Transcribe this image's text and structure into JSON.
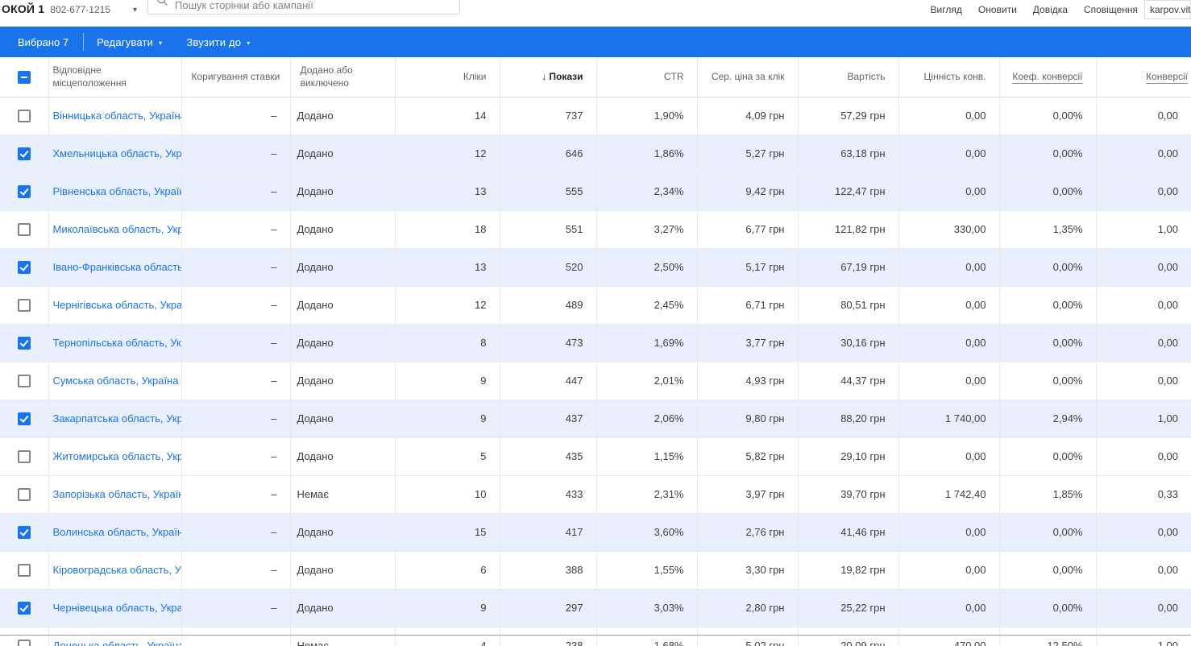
{
  "topbar": {
    "account_name": "ОКОЙ 1",
    "account_id": "802-677-1215",
    "search_placeholder": "Пошук сторінки або кампанії",
    "menu_items": [
      "Вигляд",
      "Оновити",
      "Довідка",
      "Сповіщення"
    ],
    "user_email": "karpov.vital",
    "accent_color": "#1a73e8",
    "selected_row_color": "#e8f0fe"
  },
  "selection_bar": {
    "selected_count_label": "Вибрано 7",
    "actions": [
      {
        "label": "Редагувати"
      },
      {
        "label": "Звузити до"
      }
    ]
  },
  "icons": {
    "sort_desc": "↓",
    "caret_down": "▾"
  },
  "table": {
    "columns": [
      {
        "id": "location",
        "label": "Відповідне місцеположення",
        "align": "left"
      },
      {
        "id": "bid_adjustment",
        "label": "Коригування ставки",
        "align": "left"
      },
      {
        "id": "added",
        "label": "Додано або виключено",
        "align": "left"
      },
      {
        "id": "clicks",
        "label": "Кліки",
        "align": "right"
      },
      {
        "id": "impressions",
        "label": "Покази",
        "align": "right",
        "sorted": "desc"
      },
      {
        "id": "ctr",
        "label": "CTR",
        "align": "right"
      },
      {
        "id": "avg_cpc",
        "label": "Сер. ціна за клік",
        "align": "right"
      },
      {
        "id": "cost",
        "label": "Вартість",
        "align": "right"
      },
      {
        "id": "conv_value",
        "label": "Цінність конв.",
        "align": "right"
      },
      {
        "id": "conv_rate",
        "label": "Коеф. конверсії",
        "align": "right",
        "underlined": true
      },
      {
        "id": "conversions",
        "label": "Конверсії",
        "align": "right",
        "underlined": true
      }
    ],
    "rows": [
      {
        "checked": false,
        "location": "Вінницька область, Україна",
        "bid_adjustment": "–",
        "added": "Додано",
        "clicks": "14",
        "impressions": "737",
        "ctr": "1,90%",
        "avg_cpc": "4,09 грн",
        "cost": "57,29 грн",
        "conv_value": "0,00",
        "conv_rate": "0,00%",
        "conversions": "0,00"
      },
      {
        "checked": true,
        "location": "Хмельницька область, Украї...",
        "bid_adjustment": "–",
        "added": "Додано",
        "clicks": "12",
        "impressions": "646",
        "ctr": "1,86%",
        "avg_cpc": "5,27 грн",
        "cost": "63,18 грн",
        "conv_value": "0,00",
        "conv_rate": "0,00%",
        "conversions": "0,00"
      },
      {
        "checked": true,
        "location": "Рівненська область, Україна",
        "bid_adjustment": "–",
        "added": "Додано",
        "clicks": "13",
        "impressions": "555",
        "ctr": "2,34%",
        "avg_cpc": "9,42 грн",
        "cost": "122,47 грн",
        "conv_value": "0,00",
        "conv_rate": "0,00%",
        "conversions": "0,00"
      },
      {
        "checked": false,
        "location": "Миколаївська область, Украї...",
        "bid_adjustment": "–",
        "added": "Додано",
        "clicks": "18",
        "impressions": "551",
        "ctr": "3,27%",
        "avg_cpc": "6,77 грн",
        "cost": "121,82 грн",
        "conv_value": "330,00",
        "conv_rate": "1,35%",
        "conversions": "1,00"
      },
      {
        "checked": true,
        "location": "Івано-Франківська область, ...",
        "bid_adjustment": "–",
        "added": "Додано",
        "clicks": "13",
        "impressions": "520",
        "ctr": "2,50%",
        "avg_cpc": "5,17 грн",
        "cost": "67,19 грн",
        "conv_value": "0,00",
        "conv_rate": "0,00%",
        "conversions": "0,00"
      },
      {
        "checked": false,
        "location": "Чернігівська область, Україна",
        "bid_adjustment": "–",
        "added": "Додано",
        "clicks": "12",
        "impressions": "489",
        "ctr": "2,45%",
        "avg_cpc": "6,71 грн",
        "cost": "80,51 грн",
        "conv_value": "0,00",
        "conv_rate": "0,00%",
        "conversions": "0,00"
      },
      {
        "checked": true,
        "location": "Тернопільська область, Укра...",
        "bid_adjustment": "–",
        "added": "Додано",
        "clicks": "8",
        "impressions": "473",
        "ctr": "1,69%",
        "avg_cpc": "3,77 грн",
        "cost": "30,16 грн",
        "conv_value": "0,00",
        "conv_rate": "0,00%",
        "conversions": "0,00"
      },
      {
        "checked": false,
        "location": "Сумська область, Україна",
        "bid_adjustment": "–",
        "added": "Додано",
        "clicks": "9",
        "impressions": "447",
        "ctr": "2,01%",
        "avg_cpc": "4,93 грн",
        "cost": "44,37 грн",
        "conv_value": "0,00",
        "conv_rate": "0,00%",
        "conversions": "0,00"
      },
      {
        "checked": true,
        "location": "Закарпатська область, Украї...",
        "bid_adjustment": "–",
        "added": "Додано",
        "clicks": "9",
        "impressions": "437",
        "ctr": "2,06%",
        "avg_cpc": "9,80 грн",
        "cost": "88,20 грн",
        "conv_value": "1 740,00",
        "conv_rate": "2,94%",
        "conversions": "1,00"
      },
      {
        "checked": false,
        "location": "Житомирська область, Украї...",
        "bid_adjustment": "–",
        "added": "Додано",
        "clicks": "5",
        "impressions": "435",
        "ctr": "1,15%",
        "avg_cpc": "5,82 грн",
        "cost": "29,10 грн",
        "conv_value": "0,00",
        "conv_rate": "0,00%",
        "conversions": "0,00"
      },
      {
        "checked": false,
        "location": "Запорізька область, Україна",
        "bid_adjustment": "–",
        "added": "Немає",
        "clicks": "10",
        "impressions": "433",
        "ctr": "2,31%",
        "avg_cpc": "3,97 грн",
        "cost": "39,70 грн",
        "conv_value": "1 742,40",
        "conv_rate": "1,85%",
        "conversions": "0,33"
      },
      {
        "checked": true,
        "location": "Волинська область, Україна",
        "bid_adjustment": "–",
        "added": "Додано",
        "clicks": "15",
        "impressions": "417",
        "ctr": "3,60%",
        "avg_cpc": "2,76 грн",
        "cost": "41,46 грн",
        "conv_value": "0,00",
        "conv_rate": "0,00%",
        "conversions": "0,00"
      },
      {
        "checked": false,
        "location": "Кіровоградська область, Укр...",
        "bid_adjustment": "–",
        "added": "Додано",
        "clicks": "6",
        "impressions": "388",
        "ctr": "1,55%",
        "avg_cpc": "3,30 грн",
        "cost": "19,82 грн",
        "conv_value": "0,00",
        "conv_rate": "0,00%",
        "conversions": "0,00"
      },
      {
        "checked": true,
        "location": "Чернівецька область, Україна",
        "bid_adjustment": "–",
        "added": "Додано",
        "clicks": "9",
        "impressions": "297",
        "ctr": "3,03%",
        "avg_cpc": "2,80 грн",
        "cost": "25,22 грн",
        "conv_value": "0,00",
        "conv_rate": "0,00%",
        "conversions": "0,00"
      },
      {
        "checked": false,
        "location": "Донецька область, Україна",
        "bid_adjustment": "–",
        "added": "Немає",
        "clicks": "4",
        "impressions": "238",
        "ctr": "1,68%",
        "avg_cpc": "5,02 грн",
        "cost": "20,09 грн",
        "conv_value": "470,00",
        "conv_rate": "12,50%",
        "conversions": "1,00"
      }
    ]
  }
}
